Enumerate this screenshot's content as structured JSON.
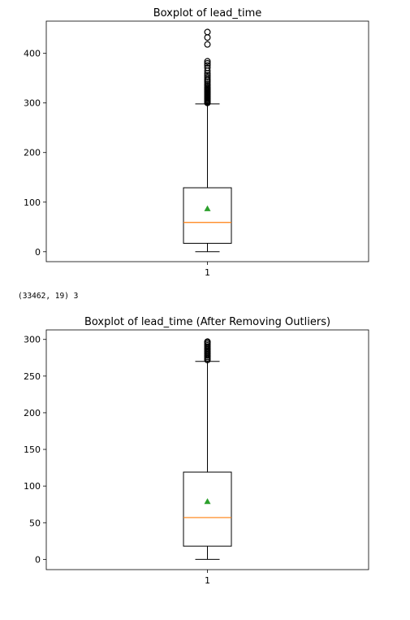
{
  "output_text": "(33462, 19) 3",
  "chart_data": [
    {
      "type": "box",
      "title": "Boxplot of lead_time",
      "xlabel": "",
      "ylabel": "",
      "ylim": [
        -20,
        465
      ],
      "yticks": [
        0,
        100,
        200,
        300,
        400
      ],
      "categories": [
        "1"
      ],
      "box": {
        "min": 0,
        "q1": 17,
        "median": 59,
        "mean": 87,
        "q3": 129,
        "max": 298
      },
      "outliers": [
        300,
        302,
        304,
        306,
        308,
        310,
        312,
        314,
        316,
        318,
        320,
        322,
        324,
        326,
        328,
        330,
        332,
        335,
        338,
        342,
        345,
        348,
        352,
        356,
        360,
        365,
        371,
        376,
        380,
        384,
        418,
        432,
        443
      ],
      "grid": false,
      "colors": {
        "median": "#ff7f0e",
        "mean": "#2ca02c",
        "box": "#000000"
      }
    },
    {
      "type": "box",
      "title": "Boxplot of lead_time (After Removing Outliers)",
      "xlabel": "",
      "ylabel": "",
      "ylim": [
        -14,
        313
      ],
      "yticks": [
        0,
        50,
        100,
        150,
        200,
        250,
        300
      ],
      "categories": [
        "1"
      ],
      "box": {
        "min": 0,
        "q1": 18,
        "median": 57,
        "mean": 79,
        "q3": 119,
        "max": 270
      },
      "outliers": [
        272,
        274,
        276,
        278,
        280,
        282,
        284,
        286,
        288,
        290,
        292,
        294,
        296,
        297
      ],
      "grid": false,
      "colors": {
        "median": "#ff7f0e",
        "mean": "#2ca02c",
        "box": "#000000"
      }
    }
  ]
}
